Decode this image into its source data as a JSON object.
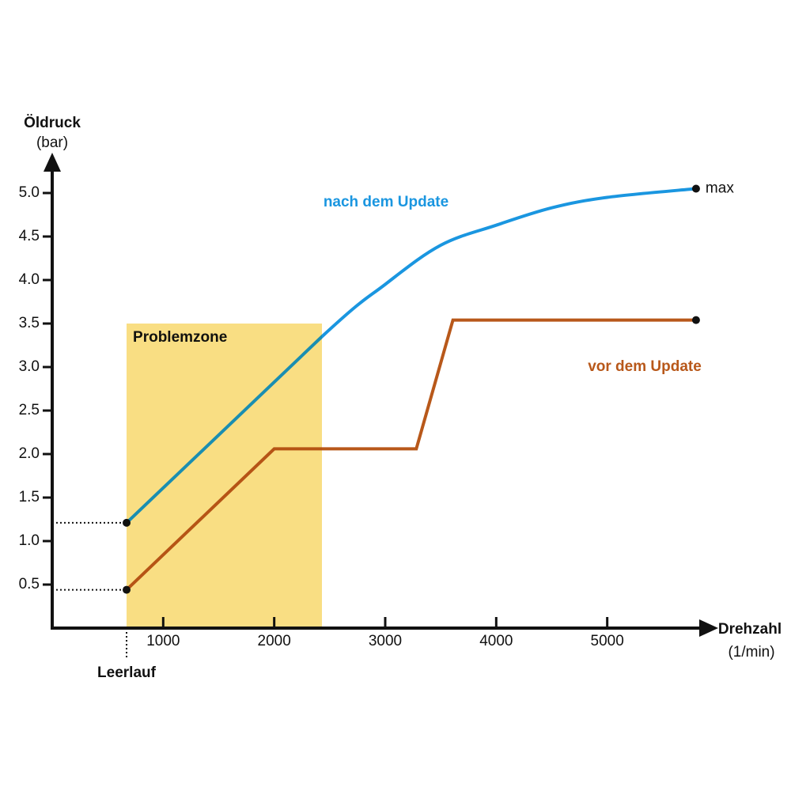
{
  "chart_data": {
    "type": "line",
    "y_label": "Öldruck",
    "y_unit": "(bar)",
    "x_label": "Drehzahl",
    "x_unit": "(1/min)",
    "xlim": [
      0,
      6000
    ],
    "xticks": [
      1000,
      2000,
      3000,
      4000,
      5000
    ],
    "ylim": [
      0,
      5.5
    ],
    "yticks": [
      0.5,
      {
        "value": 1,
        "label": "1.0"
      },
      1.5,
      {
        "value": 2,
        "label": "2.0"
      },
      2.5,
      {
        "value": 3,
        "label": "3.0"
      },
      3.5,
      {
        "value": 4,
        "label": "4.0"
      },
      4.5,
      {
        "value": 5,
        "label": "5.0"
      }
    ],
    "zone": {
      "label": "Problemzone",
      "x": [
        670,
        2430
      ],
      "y": [
        0,
        3.5
      ],
      "color": "#fbeaa6"
    },
    "idle": {
      "label": "Leerlauf",
      "x": 670
    },
    "max_label": "max",
    "series": [
      {
        "name": "nach dem Update",
        "color": "#1a96e0",
        "smooth": true,
        "x": [
          670,
          2430,
          3000,
          3500,
          4000,
          4500,
          5000,
          5800
        ],
        "values": [
          1.21,
          3.35,
          3.95,
          4.4,
          4.63,
          4.83,
          4.95,
          5.05
        ]
      },
      {
        "name": "vor dem Update",
        "color": "#b8581a",
        "smooth": false,
        "x": [
          670,
          2000,
          3280,
          3610,
          5800
        ],
        "values": [
          0.44,
          2.06,
          2.06,
          3.54,
          3.54
        ]
      }
    ]
  }
}
